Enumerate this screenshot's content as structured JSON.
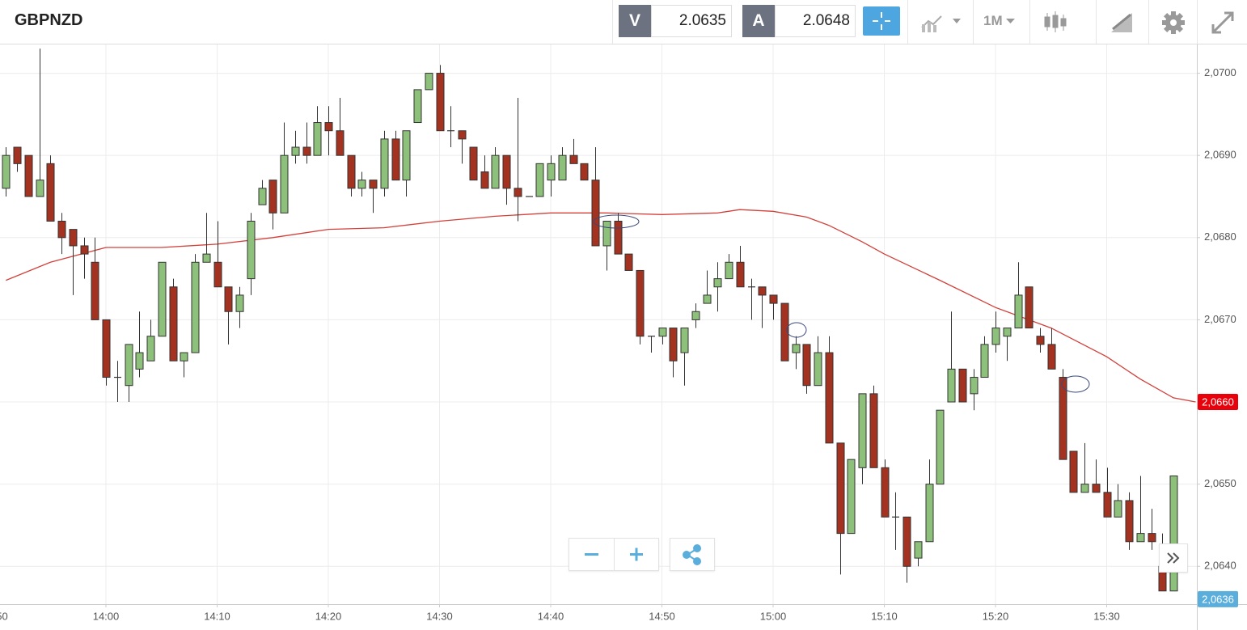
{
  "toolbar": {
    "symbol": "GBPNZD",
    "bid_label": "V",
    "bid": "2.0635",
    "ask_label": "A",
    "ask": "2.0648",
    "interval": "1M"
  },
  "chart_data": {
    "type": "candlestick",
    "title": "GBPNZD",
    "x": [
      "13:51",
      "13:52",
      "13:53",
      "13:54",
      "13:55",
      "13:56",
      "13:57",
      "13:58",
      "13:59",
      "14:00",
      "14:01",
      "14:02",
      "14:03",
      "14:04",
      "14:05",
      "14:06",
      "14:07",
      "14:08",
      "14:09",
      "14:10",
      "14:11",
      "14:12",
      "14:13",
      "14:14",
      "14:15",
      "14:16",
      "14:17",
      "14:18",
      "14:19",
      "14:20",
      "14:21",
      "14:22",
      "14:23",
      "14:24",
      "14:25",
      "14:26",
      "14:27",
      "14:28",
      "14:29",
      "14:30",
      "14:31",
      "14:32",
      "14:33",
      "14:34",
      "14:35",
      "14:36",
      "14:37",
      "14:38",
      "14:39",
      "14:40",
      "14:41",
      "14:42",
      "14:43",
      "14:44",
      "14:45",
      "14:46",
      "14:47",
      "14:48",
      "14:49",
      "14:50",
      "14:51",
      "14:52",
      "14:53",
      "14:54",
      "14:55",
      "14:56",
      "14:57",
      "14:58",
      "14:59",
      "15:00",
      "15:01",
      "15:02",
      "15:03",
      "15:04",
      "15:05",
      "15:06",
      "15:07",
      "15:08",
      "15:09",
      "15:10",
      "15:11",
      "15:12",
      "15:13",
      "15:14",
      "15:15",
      "15:16",
      "15:17",
      "15:18",
      "15:19",
      "15:20",
      "15:21",
      "15:22",
      "15:23",
      "15:24",
      "15:25",
      "15:26",
      "15:27",
      "15:28",
      "15:29",
      "15:30",
      "15:31",
      "15:32",
      "15:33",
      "15:34",
      "15:35",
      "15:36"
    ],
    "open": [
      2.0686,
      2.0691,
      2.069,
      2.0685,
      2.0689,
      2.0682,
      2.0681,
      2.0679,
      2.0677,
      2.067,
      2.0663,
      2.0662,
      2.0664,
      2.0665,
      2.0668,
      2.0674,
      2.0665,
      2.0666,
      2.0677,
      2.0677,
      2.0674,
      2.0671,
      2.0675,
      2.0684,
      2.0687,
      2.0683,
      2.069,
      2.0691,
      2.069,
      2.0694,
      2.0693,
      2.069,
      2.0686,
      2.0687,
      2.0686,
      2.0692,
      2.0687,
      2.0694,
      2.0698,
      2.07,
      2.0693,
      2.0693,
      2.0691,
      2.0688,
      2.0686,
      2.069,
      2.0686,
      2.0685,
      2.0685,
      2.0687,
      2.0687,
      2.069,
      2.0689,
      2.0687,
      2.0679,
      2.0682,
      2.0678,
      2.0676,
      2.0668,
      2.0668,
      2.0669,
      2.0666,
      2.067,
      2.0672,
      2.0674,
      2.0675,
      2.0677,
      2.0674,
      2.0674,
      2.0673,
      2.0672,
      2.0666,
      2.0667,
      2.0662,
      2.0666,
      2.0655,
      2.0644,
      2.0652,
      2.0661,
      2.0652,
      2.0646,
      2.0646,
      2.0641,
      2.0643,
      2.065,
      2.066,
      2.0664,
      2.0661,
      2.0663,
      2.0667,
      2.0668,
      2.0669,
      2.0674,
      2.0668,
      2.0667,
      2.0663,
      2.0654,
      2.0649,
      2.065,
      2.0649,
      2.0646,
      2.0648,
      2.0643,
      2.0644,
      2.064,
      2.0637
    ],
    "high": [
      2.0691,
      2.0691,
      2.069,
      2.0703,
      2.069,
      2.0683,
      2.0681,
      2.068,
      2.068,
      2.067,
      2.0665,
      2.0667,
      2.0671,
      2.067,
      2.0677,
      2.0675,
      2.0666,
      2.0678,
      2.0683,
      2.0682,
      2.0674,
      2.0674,
      2.0683,
      2.0687,
      2.0687,
      2.0694,
      2.0693,
      2.0694,
      2.0696,
      2.0696,
      2.0697,
      2.069,
      2.0688,
      2.0687,
      2.0693,
      2.0693,
      2.0693,
      2.0698,
      2.07,
      2.0701,
      2.0696,
      2.0693,
      2.0691,
      2.069,
      2.0691,
      2.069,
      2.0697,
      2.0685,
      2.0689,
      2.069,
      2.0691,
      2.0692,
      2.0689,
      2.0691,
      2.0682,
      2.0683,
      2.0678,
      2.0676,
      2.0668,
      2.0669,
      2.0669,
      2.0669,
      2.0672,
      2.0676,
      2.0677,
      2.0678,
      2.0679,
      2.0675,
      2.0674,
      2.0673,
      2.0672,
      2.0668,
      2.0667,
      2.0668,
      2.0668,
      2.0655,
      2.0653,
      2.0661,
      2.0662,
      2.0653,
      2.0649,
      2.0646,
      2.0643,
      2.0653,
      2.0659,
      2.0671,
      2.0664,
      2.0664,
      2.0668,
      2.0671,
      2.0669,
      2.0677,
      2.0674,
      2.0669,
      2.0669,
      2.0664,
      2.0654,
      2.0655,
      2.0653,
      2.0652,
      2.065,
      2.0649,
      2.0651,
      2.0647,
      2.0644,
      2.0651
    ],
    "low": [
      2.0685,
      2.0688,
      2.0685,
      2.0685,
      2.0682,
      2.0678,
      2.0673,
      2.0675,
      2.067,
      2.0662,
      2.066,
      2.066,
      2.0663,
      2.0665,
      2.0668,
      2.0665,
      2.0663,
      2.0666,
      2.0677,
      2.0674,
      2.0667,
      2.0669,
      2.0673,
      2.0684,
      2.0681,
      2.0683,
      2.0689,
      2.0689,
      2.069,
      2.069,
      2.069,
      2.0685,
      2.0685,
      2.0683,
      2.0685,
      2.0687,
      2.0685,
      2.0694,
      2.0698,
      2.0693,
      2.0691,
      2.0689,
      2.0687,
      2.0686,
      2.0686,
      2.0684,
      2.0682,
      2.0685,
      2.0685,
      2.0685,
      2.0687,
      2.0689,
      2.0687,
      2.0679,
      2.0676,
      2.0678,
      2.0676,
      2.0667,
      2.0666,
      2.0667,
      2.0663,
      2.0662,
      2.0669,
      2.0672,
      2.0671,
      2.0675,
      2.0674,
      2.067,
      2.0669,
      2.067,
      2.0665,
      2.0664,
      2.0661,
      2.0662,
      2.0655,
      2.0639,
      2.0644,
      2.065,
      2.0652,
      2.0646,
      2.0642,
      2.0638,
      2.064,
      2.0643,
      2.065,
      2.066,
      2.066,
      2.0659,
      2.0663,
      2.0666,
      2.0665,
      2.0669,
      2.0669,
      2.0666,
      2.0664,
      2.0653,
      2.0649,
      2.0649,
      2.0649,
      2.0646,
      2.0646,
      2.0642,
      2.0643,
      2.0642,
      2.0637,
      2.0637
    ],
    "close": [
      2.069,
      2.0689,
      2.0685,
      2.0687,
      2.0682,
      2.068,
      2.0679,
      2.0678,
      2.067,
      2.0663,
      2.0663,
      2.0667,
      2.0666,
      2.0668,
      2.0677,
      2.0665,
      2.0666,
      2.0677,
      2.0678,
      2.0674,
      2.0671,
      2.0673,
      2.0682,
      2.0686,
      2.0683,
      2.069,
      2.0691,
      2.069,
      2.0694,
      2.0693,
      2.069,
      2.0686,
      2.0687,
      2.0686,
      2.0692,
      2.0687,
      2.0693,
      2.0698,
      2.07,
      2.0693,
      2.0693,
      2.0692,
      2.0687,
      2.0686,
      2.069,
      2.0686,
      2.0685,
      2.0685,
      2.0689,
      2.0689,
      2.069,
      2.0689,
      2.0687,
      2.0679,
      2.0682,
      2.0678,
      2.0676,
      2.0668,
      2.0668,
      2.0669,
      2.0665,
      2.0669,
      2.0671,
      2.0673,
      2.0675,
      2.0677,
      2.0674,
      2.0674,
      2.0673,
      2.0672,
      2.0665,
      2.0667,
      2.0662,
      2.0666,
      2.0655,
      2.0644,
      2.0653,
      2.0661,
      2.0652,
      2.0646,
      2.0646,
      2.064,
      2.0643,
      2.065,
      2.0659,
      2.0664,
      2.066,
      2.0663,
      2.0667,
      2.0669,
      2.0669,
      2.0673,
      2.0669,
      2.0667,
      2.0664,
      2.0653,
      2.0649,
      2.065,
      2.0649,
      2.0646,
      2.0648,
      2.0643,
      2.0644,
      2.0643,
      2.0637,
      2.0651
    ],
    "up_color": "#8dc07a",
    "down_color": "#a33220",
    "ma": {
      "x": [
        "13:51",
        "13:55",
        "14:00",
        "14:05",
        "14:10",
        "14:15",
        "14:20",
        "14:25",
        "14:30",
        "14:35",
        "14:40",
        "14:45",
        "14:50",
        "14:55",
        "14:57",
        "15:00",
        "15:03",
        "15:05",
        "15:08",
        "15:10",
        "15:15",
        "15:20",
        "15:25",
        "15:30",
        "15:33",
        "15:36",
        "15:38"
      ],
      "values": [
        2.06748,
        2.0677,
        2.06788,
        2.06788,
        2.06792,
        2.068,
        2.0681,
        2.06812,
        2.0682,
        2.06826,
        2.0683,
        2.0683,
        2.06828,
        2.0683,
        2.06834,
        2.06832,
        2.06825,
        2.06815,
        2.06795,
        2.0678,
        2.06748,
        2.06715,
        2.0669,
        2.06655,
        2.06628,
        2.06605,
        2.066
      ],
      "color": "#d2403a"
    },
    "xlim": [
      "13:50",
      "15:38"
    ],
    "xticks": [
      "13:50",
      "14:00",
      "14:10",
      "14:20",
      "14:30",
      "14:40",
      "14:50",
      "15:00",
      "15:10",
      "15:20",
      "15:30"
    ],
    "ylim": [
      2.06354,
      2.07035
    ],
    "yticks": [
      {
        "value": 2.064,
        "label": "2,0640"
      },
      {
        "value": 2.065,
        "label": "2,0650"
      },
      {
        "value": 2.066,
        "label": "2,0660"
      },
      {
        "value": 2.067,
        "label": "2,0670"
      },
      {
        "value": 2.068,
        "label": "2,0680"
      },
      {
        "value": 2.069,
        "label": "2,0690"
      },
      {
        "value": 2.07,
        "label": "2,0700"
      }
    ],
    "grid": true,
    "price_tags": [
      {
        "value": 2.066,
        "label": "2,0660",
        "color": "#e8000b"
      },
      {
        "value": 2.0636,
        "label": "2,0636",
        "color": "#5aaedb"
      }
    ]
  }
}
